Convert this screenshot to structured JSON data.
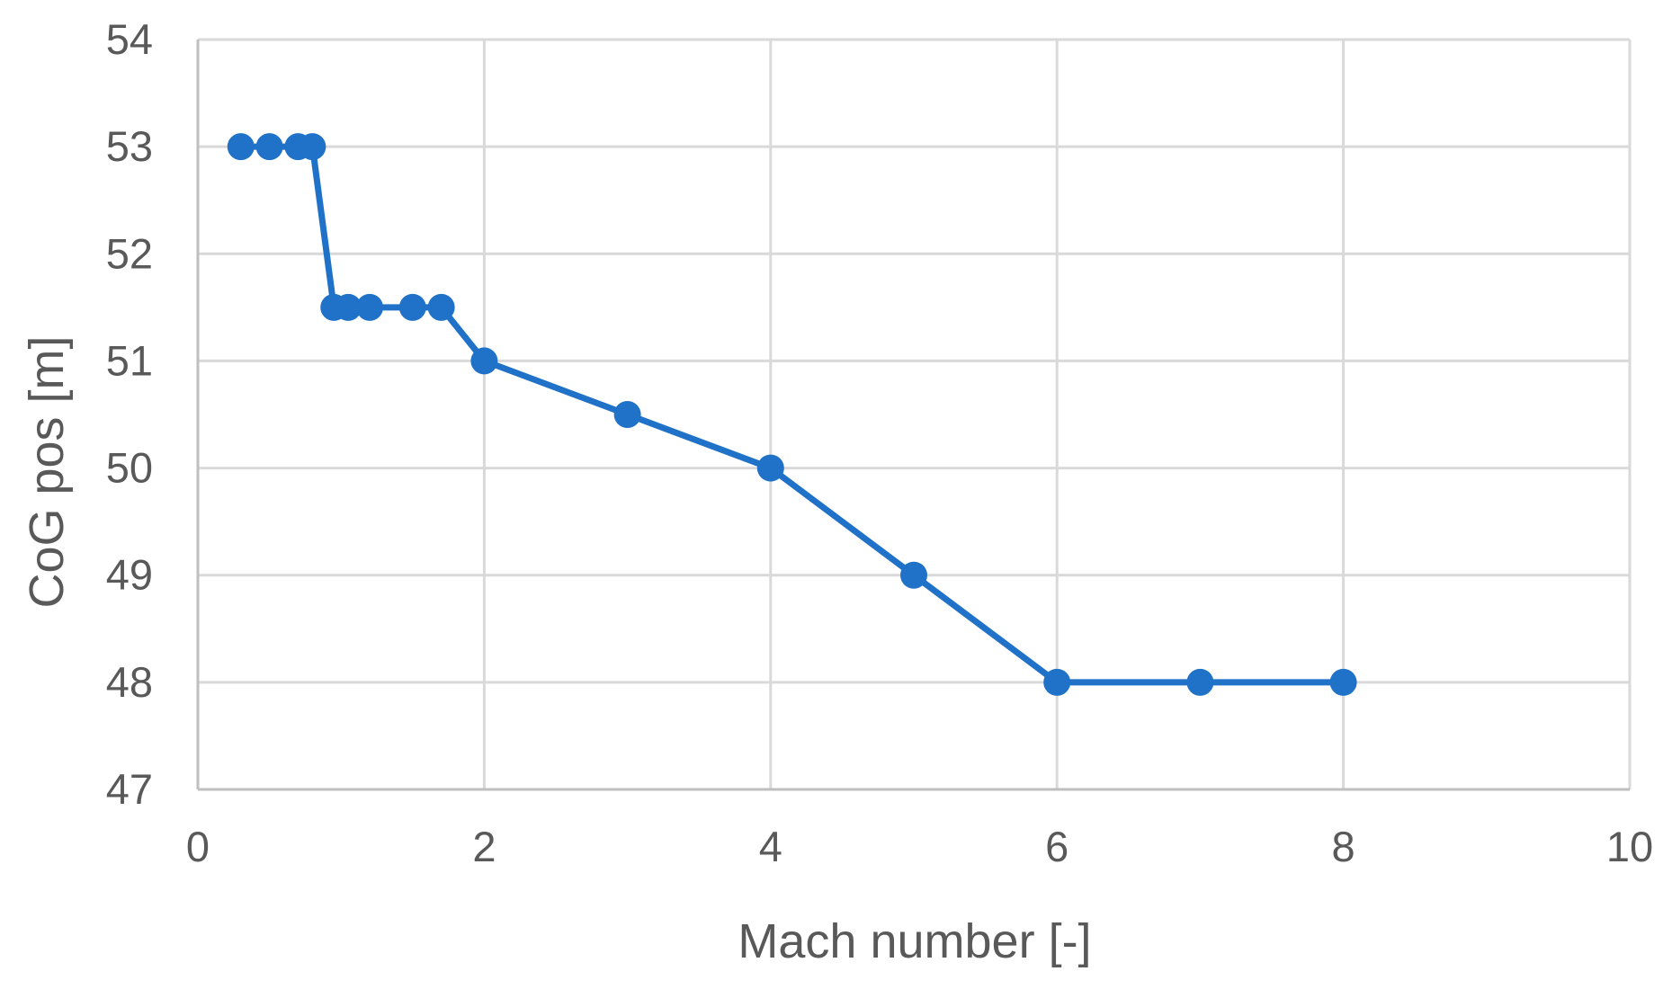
{
  "chart_data": {
    "type": "line",
    "title": "",
    "xlabel": "Mach number [-]",
    "ylabel": "CoG pos [m]",
    "xlim": [
      0,
      10
    ],
    "ylim": [
      47,
      54
    ],
    "x_ticks": [
      0,
      2,
      4,
      6,
      8,
      10
    ],
    "y_ticks": [
      47,
      48,
      49,
      50,
      51,
      52,
      53,
      54
    ],
    "grid": true,
    "legend": "none",
    "series": [
      {
        "color": "#1f72c8",
        "marker": "circle",
        "x": [
          0.3,
          0.5,
          0.7,
          0.8,
          0.95,
          1.05,
          1.2,
          1.5,
          1.7,
          2,
          3,
          4,
          5,
          6,
          7,
          8
        ],
        "y": [
          53,
          53,
          53,
          53,
          51.5,
          51.5,
          51.5,
          51.5,
          51.5,
          51,
          50.5,
          50,
          49,
          48,
          48,
          48
        ]
      }
    ]
  }
}
